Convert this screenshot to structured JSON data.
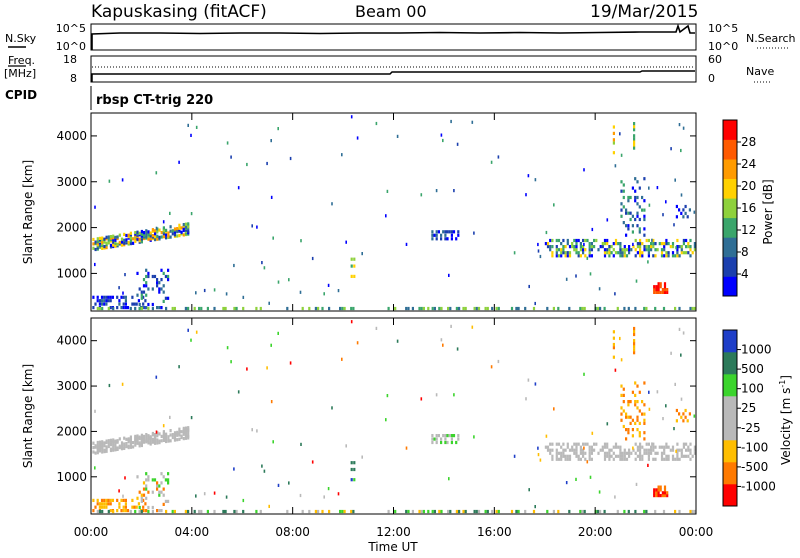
{
  "header": {
    "station": "Kapuskasing (fitACF)",
    "beam": "Beam 00",
    "date": "19/Mar/2015"
  },
  "top_panels": {
    "left_labels": {
      "nsky": "N.Sky",
      "freq_line1": "Freq.",
      "freq_line2": "[MHz]",
      "cpid": "CPID"
    },
    "right_labels": {
      "nsearch": "N.Search",
      "nave": "Nave"
    },
    "noise_ticks_left": [
      "10^5",
      "10^0"
    ],
    "noise_ticks_right": [
      "10^5",
      "10^0"
    ],
    "freq_ticks": [
      "18",
      "8"
    ],
    "nave_ticks": [
      "60",
      "0"
    ],
    "cpid_text": "rbsp CT-trig 220"
  },
  "chart_data": [
    {
      "type": "heatmap",
      "name": "power",
      "ylabel": "Slant Range [km]",
      "ylim": [
        180,
        4500
      ],
      "yticks": [
        "1000",
        "2000",
        "3000",
        "4000"
      ],
      "colorbar_label": "Power [dB]",
      "colorbar_ticks": [
        "28",
        "24",
        "20",
        "16",
        "12",
        "8",
        "4"
      ],
      "colors": [
        "#0000ff",
        "#1b3fae",
        "#2f6e95",
        "#3aa56b",
        "#8ed13c",
        "#ffd100",
        "#ff9b00",
        "#ff5a00",
        "#ff0000"
      ]
    },
    {
      "type": "heatmap",
      "name": "velocity",
      "ylabel": "Slant Range [km]",
      "ylim": [
        180,
        4500
      ],
      "yticks": [
        "1000",
        "2000",
        "3000",
        "4000"
      ],
      "colorbar_label": "Velocity [m s",
      "colorbar_label_exp": "-1",
      "colorbar_ticks": [
        "1000",
        "500",
        "100",
        "25",
        "-25",
        "-100",
        "-500",
        "-1000"
      ],
      "colors": [
        "#1e3ec8",
        "#2c7a5a",
        "#3bd42c",
        "#b9b9b9",
        "#b9b9b9",
        "#ffbe00",
        "#ff7a00",
        "#ff0000"
      ]
    }
  ],
  "time_axis": {
    "xlabel": "Time UT",
    "ticks": [
      "00:00",
      "04:00",
      "08:00",
      "12:00",
      "16:00",
      "20:00",
      "00:00"
    ],
    "xlim_hours": [
      0,
      24
    ]
  }
}
